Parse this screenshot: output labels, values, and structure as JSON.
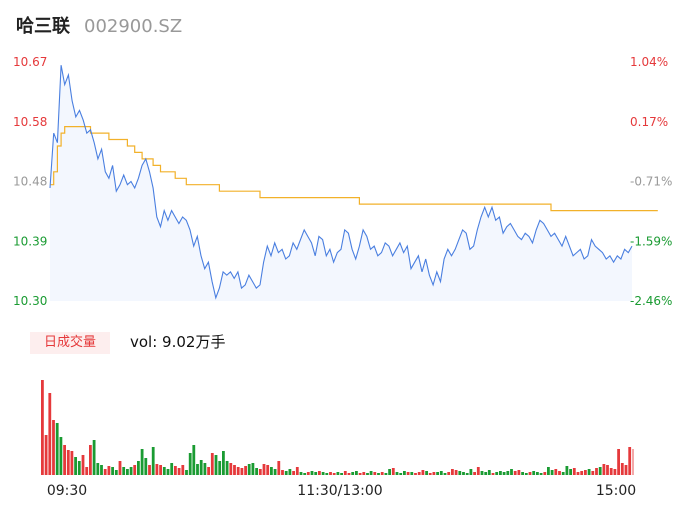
{
  "header": {
    "name": "哈三联",
    "code": "002900.SZ"
  },
  "volume_panel": {
    "badge": "日成交量",
    "summary": "vol: 9.02万手"
  },
  "colors": {
    "up": "#e5393b",
    "down": "#1a9b32",
    "neutral": "#999999",
    "price_line": "#4a7fe0",
    "avg_line": "#f2b12a",
    "area_fill": "#eef3fd"
  },
  "chart_data": [
    {
      "type": "line",
      "title": "",
      "price_axis": {
        "ticks": [
          "10.67",
          "10.58",
          "10.48",
          "10.39",
          "10.30"
        ],
        "ylim": [
          10.3,
          10.67
        ]
      },
      "pct_axis": {
        "ticks": [
          "1.04%",
          "0.17%",
          "-0.71%",
          "-1.59%",
          "-2.46%"
        ]
      },
      "time_labels": [
        "09:30",
        "11:30/13:00",
        "15:00"
      ],
      "series": [
        {
          "role": "price",
          "values": [
            10.475,
            10.56,
            10.545,
            10.665,
            10.635,
            10.65,
            10.61,
            10.585,
            10.595,
            10.58,
            10.56,
            10.565,
            10.545,
            10.52,
            10.535,
            10.5,
            10.49,
            10.51,
            10.47,
            10.48,
            10.495,
            10.48,
            10.485,
            10.475,
            10.49,
            10.51,
            10.52,
            10.5,
            10.475,
            10.43,
            10.415,
            10.44,
            10.425,
            10.44,
            10.43,
            10.42,
            10.43,
            10.425,
            10.41,
            10.385,
            10.4,
            10.37,
            10.35,
            10.36,
            10.33,
            10.305,
            10.32,
            10.345,
            10.34,
            10.345,
            10.335,
            10.345,
            10.32,
            10.325,
            10.34,
            10.33,
            10.32,
            10.325,
            10.36,
            10.385,
            10.37,
            10.39,
            10.375,
            10.38,
            10.365,
            10.37,
            10.39,
            10.38,
            10.395,
            10.41,
            10.4,
            10.39,
            10.37,
            10.4,
            10.395,
            10.37,
            10.38,
            10.36,
            10.375,
            10.38,
            10.41,
            10.405,
            10.38,
            10.365,
            10.385,
            10.41,
            10.4,
            10.38,
            10.385,
            10.37,
            10.375,
            10.39,
            10.385,
            10.37,
            10.38,
            10.39,
            10.375,
            10.385,
            10.35,
            10.36,
            10.37,
            10.345,
            10.365,
            10.34,
            10.325,
            10.345,
            10.33,
            10.365,
            10.38,
            10.37,
            10.38,
            10.395,
            10.41,
            10.405,
            10.38,
            10.385,
            10.41,
            10.43,
            10.445,
            10.43,
            10.445,
            10.425,
            10.43,
            10.405,
            10.415,
            10.42,
            10.41,
            10.4,
            10.395,
            10.405,
            10.4,
            10.39,
            10.41,
            10.425,
            10.42,
            10.41,
            10.4,
            10.405,
            10.395,
            10.385,
            10.4,
            10.385,
            10.37,
            10.375,
            10.38,
            10.365,
            10.37,
            10.395,
            10.385,
            10.38,
            10.375,
            10.365,
            10.37,
            10.36,
            10.37,
            10.365,
            10.38,
            10.375,
            10.385
          ]
        },
        {
          "role": "average",
          "values": [
            10.48,
            10.5,
            10.54,
            10.56,
            10.57,
            10.57,
            10.57,
            10.57,
            10.57,
            10.57,
            10.57,
            10.56,
            10.56,
            10.56,
            10.56,
            10.56,
            10.55,
            10.55,
            10.55,
            10.55,
            10.55,
            10.54,
            10.54,
            10.53,
            10.53,
            10.52,
            10.52,
            10.52,
            10.51,
            10.51,
            10.5,
            10.5,
            10.5,
            10.5,
            10.49,
            10.49,
            10.49,
            10.48,
            10.48,
            10.48,
            10.48,
            10.48,
            10.48,
            10.48,
            10.48,
            10.48,
            10.47,
            10.47,
            10.47,
            10.47,
            10.47,
            10.47,
            10.47,
            10.47,
            10.47,
            10.47,
            10.47,
            10.46,
            10.46,
            10.46,
            10.46,
            10.46,
            10.46,
            10.46,
            10.46,
            10.46,
            10.46,
            10.46,
            10.46,
            10.46,
            10.46,
            10.46,
            10.46,
            10.46,
            10.46,
            10.46,
            10.46,
            10.46,
            10.46,
            10.46,
            10.46,
            10.46,
            10.46,
            10.46,
            10.45,
            10.45,
            10.45,
            10.45,
            10.45,
            10.45,
            10.45,
            10.45,
            10.45,
            10.45,
            10.45,
            10.45,
            10.45,
            10.45,
            10.45,
            10.45,
            10.45,
            10.45,
            10.45,
            10.45,
            10.45,
            10.45,
            10.45,
            10.45,
            10.45,
            10.45,
            10.45,
            10.45,
            10.45,
            10.45,
            10.45,
            10.45,
            10.45,
            10.45,
            10.45,
            10.45,
            10.45,
            10.45,
            10.45,
            10.45,
            10.45,
            10.45,
            10.45,
            10.45,
            10.45,
            10.45,
            10.45,
            10.45,
            10.45,
            10.45,
            10.45,
            10.45,
            10.44,
            10.44,
            10.44,
            10.44,
            10.44,
            10.44,
            10.44,
            10.44,
            10.44,
            10.44,
            10.44,
            10.44,
            10.44,
            10.44,
            10.44,
            10.44,
            10.44,
            10.44,
            10.44,
            10.44,
            10.44,
            10.44,
            10.44,
            10.44,
            10.44,
            10.44,
            10.44,
            10.44,
            10.44,
            10.44
          ]
        }
      ]
    },
    {
      "type": "bar",
      "title": "",
      "volume": [
        95,
        40,
        82,
        55,
        52,
        38,
        30,
        25,
        24,
        18,
        14,
        20,
        8,
        30,
        35,
        12,
        10,
        6,
        9,
        8,
        5,
        14,
        8,
        6,
        8,
        10,
        14,
        26,
        17,
        10,
        28,
        11,
        10,
        8,
        6,
        12,
        9,
        7,
        10,
        5,
        22,
        30,
        11,
        15,
        12,
        8,
        22,
        20,
        14,
        24,
        14,
        12,
        10,
        8,
        7,
        9,
        11,
        12,
        7,
        6,
        11,
        10,
        8,
        6,
        14,
        5,
        4,
        6,
        4,
        8,
        3,
        2,
        3,
        4,
        3,
        4,
        3,
        2,
        3,
        2,
        3,
        2,
        4,
        2,
        3,
        4,
        2,
        3,
        2,
        4,
        3,
        2,
        3,
        2,
        6,
        7,
        3,
        2,
        4,
        3,
        3,
        2,
        3,
        5,
        4,
        2,
        3,
        3,
        4,
        2,
        3,
        6,
        5,
        4,
        3,
        2,
        6,
        3,
        8,
        4,
        3,
        5,
        2,
        3,
        4,
        3,
        4,
        6,
        4,
        5,
        3,
        2,
        3,
        4,
        3,
        2,
        3,
        8,
        5,
        6,
        4,
        3,
        9,
        6,
        7,
        3,
        4,
        5,
        6,
        4,
        7,
        8,
        11,
        10,
        7,
        6,
        26,
        12,
        10,
        28
      ],
      "volume_colors": "uuuudduuudduuuddduudduddduddduduuddduuudddddduudddduuuuuddduuudduudduudduddudduudduudduuddududduddduduuuduuddduuudddduuddduddddduuddudddudduuddduuuuduudu"
    }
  ]
}
